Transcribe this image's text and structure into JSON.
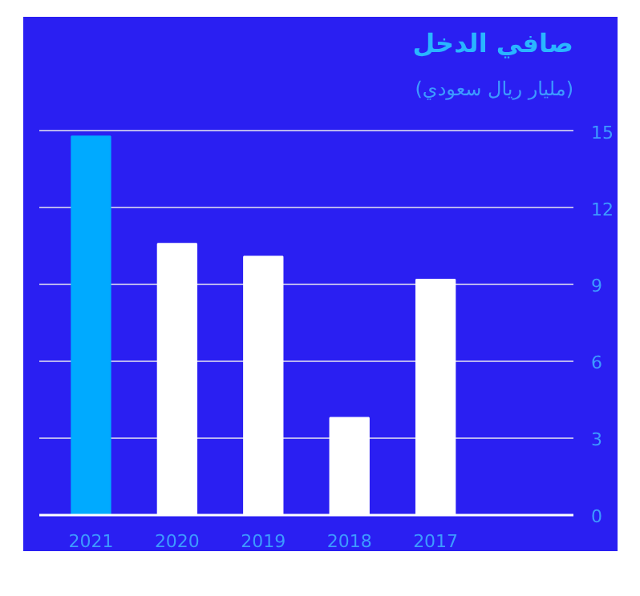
{
  "chart_data": {
    "type": "bar",
    "title": "صافي الدخل",
    "subtitle": "(مليار ريال سعودي)",
    "categories": [
      "2021",
      "2020",
      "2019",
      "2018",
      "2017"
    ],
    "values": [
      14.8,
      10.6,
      10.1,
      3.8,
      9.2
    ],
    "colors": [
      "#00aaff",
      "#ffffff",
      "#ffffff",
      "#ffffff",
      "#ffffff"
    ],
    "ylim": [
      0,
      15.9
    ],
    "yticks": [
      0,
      3,
      6,
      9,
      12,
      15
    ],
    "grid": "y"
  }
}
